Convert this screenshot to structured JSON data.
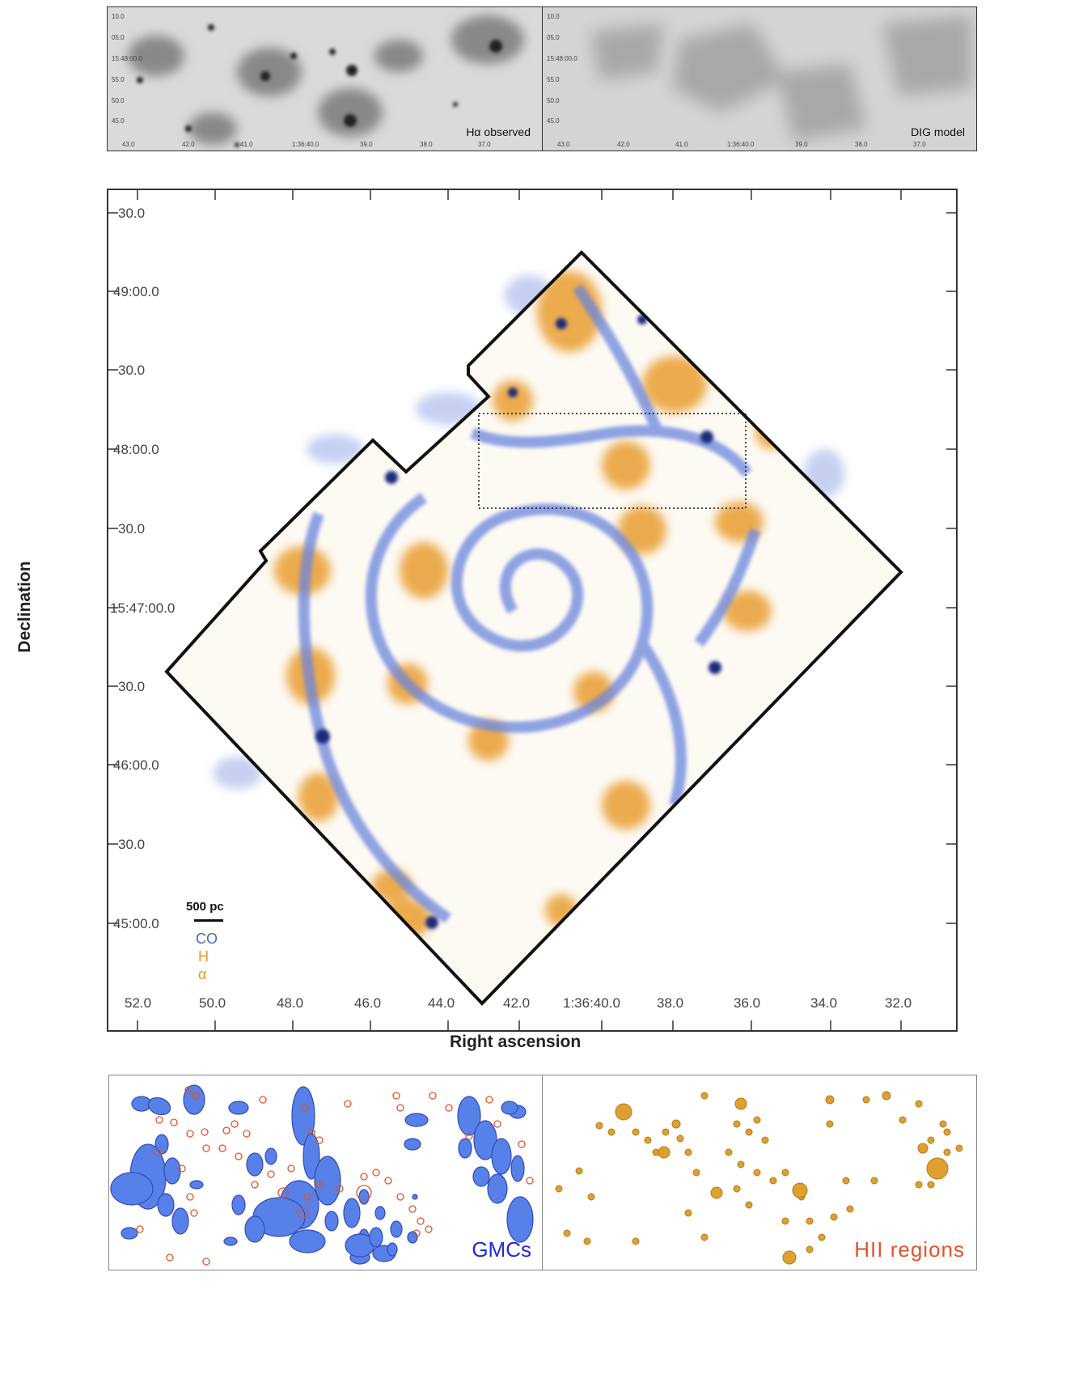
{
  "top_panels": {
    "left": {
      "label": "Hα observed",
      "dec_ticks": [
        "10.0",
        "05.0",
        "15:48:00.0",
        "55.0",
        "50.0",
        "45.0"
      ],
      "ra_ticks": [
        "43.0",
        "42.0",
        "41.0",
        "1:36:40.0",
        "39.0",
        "38.0",
        "37.0"
      ]
    },
    "right": {
      "label": "DIG model",
      "dec_ticks": [
        "10.0",
        "05.0",
        "15:48:00.0",
        "55.0",
        "50.0",
        "45.0"
      ],
      "ra_ticks": [
        "43.0",
        "42.0",
        "41.0",
        "1:36:40.0",
        "39.0",
        "38.0",
        "37.0"
      ]
    }
  },
  "main_map": {
    "ylabel": "Declination",
    "xlabel": "Right ascension",
    "dec_ticks": [
      "30.0",
      "49:00.0",
      "30.0",
      "48:00.0",
      "30.0",
      "15:47:00.0",
      "30.0",
      "46:00.0",
      "30.0",
      "45:00.0"
    ],
    "ra_ticks": [
      "52.0",
      "50.0",
      "48.0",
      "46.0",
      "44.0",
      "42.0",
      "1:36:40.0",
      "38.0",
      "36.0",
      "34.0",
      "32.0"
    ],
    "scale_bar": "500 pc",
    "legend": {
      "co": "CO",
      "ha_line1": "H",
      "ha_line2": "α",
      "co_color": "#4a63c9",
      "ha_color": "#e39a1f"
    }
  },
  "bottom_panels": {
    "left_label": "GMCs",
    "right_label": "HII regions",
    "gmc_color": "#3f6fe0",
    "hii_color": "#e0a030",
    "ring_color": "#e0542a"
  }
}
